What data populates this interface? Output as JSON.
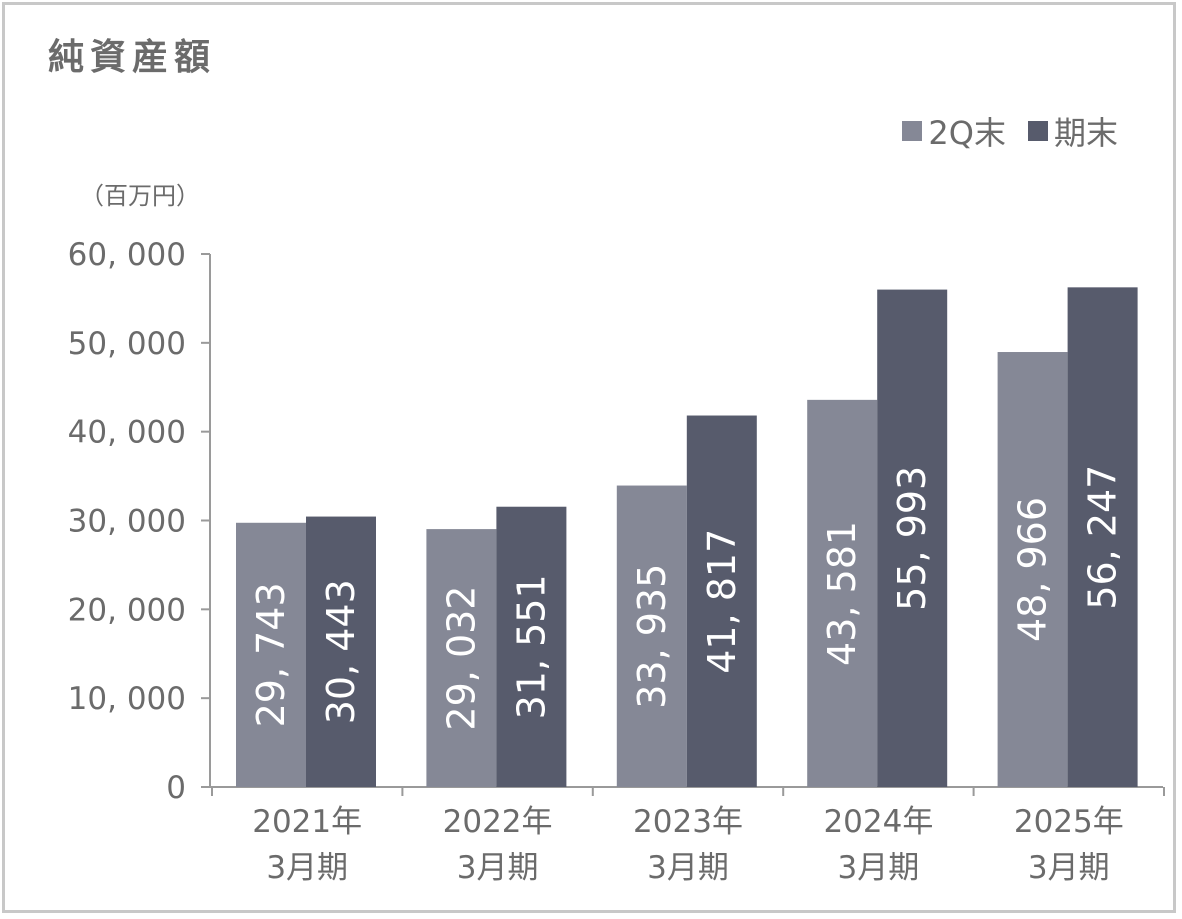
{
  "chart_data": {
    "type": "bar",
    "title": "純資産額",
    "unit_label": "（百万円）",
    "categories": [
      {
        "line1": "2021年",
        "line2": "3月期"
      },
      {
        "line1": "2022年",
        "line2": "3月期"
      },
      {
        "line1": "2023年",
        "line2": "3月期"
      },
      {
        "line1": "2024年",
        "line2": "3月期"
      },
      {
        "line1": "2025年",
        "line2": "3月期"
      }
    ],
    "series": [
      {
        "name": "2Q末",
        "color": "#858896",
        "values": [
          29743,
          29032,
          33935,
          43581,
          48966
        ],
        "labels": [
          "29, 743",
          "29, 032",
          "33, 935",
          "43, 581",
          "48, 966"
        ]
      },
      {
        "name": "期末",
        "color": "#575b6c",
        "values": [
          30443,
          31551,
          41817,
          55993,
          56247
        ],
        "labels": [
          "30, 443",
          "31, 551",
          "41, 817",
          "55, 993",
          "56, 247"
        ]
      }
    ],
    "ylim": [
      0,
      60000
    ],
    "y_ticks": [
      0,
      10000,
      20000,
      30000,
      40000,
      50000,
      60000
    ],
    "y_tick_labels": [
      "0",
      "10, 000",
      "20, 000",
      "30, 000",
      "40, 000",
      "50, 000",
      "60, 000"
    ],
    "legend_position": "top-right",
    "grid": false
  }
}
